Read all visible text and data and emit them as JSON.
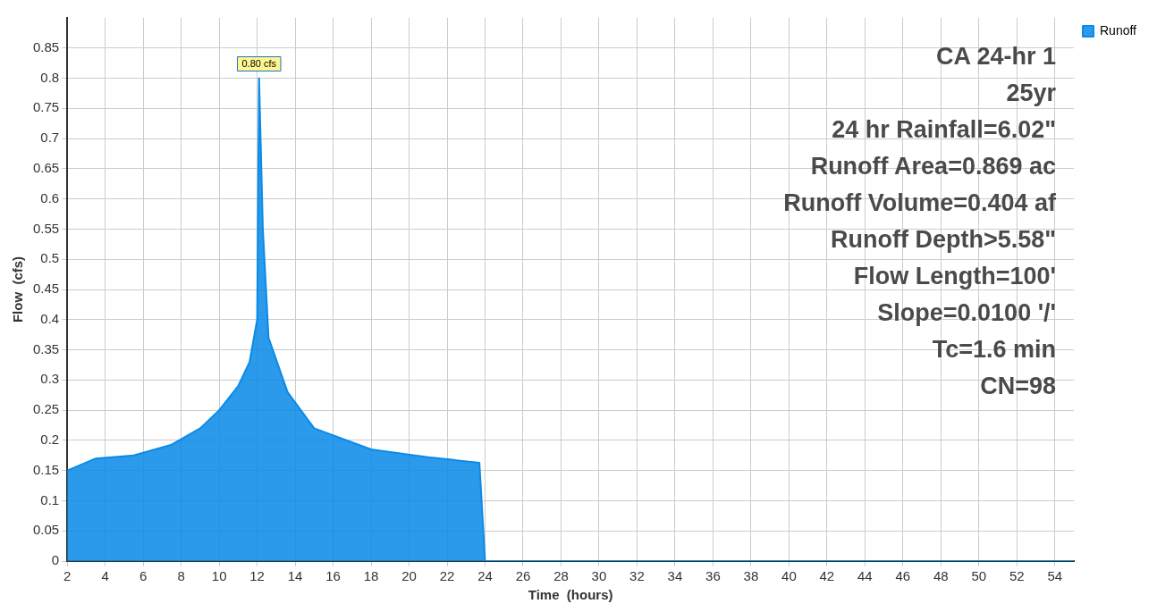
{
  "chart_data": {
    "type": "area",
    "xlabel": "Time  (hours)",
    "ylabel": "Flow  (cfs)",
    "x": [
      2,
      3.5,
      5.5,
      7.5,
      9,
      10,
      11,
      11.6,
      12,
      12.1,
      12.3,
      12.6,
      13.6,
      15,
      18,
      21,
      23.7,
      24,
      55
    ],
    "series": [
      {
        "name": "Runoff",
        "color": "#0a8be8",
        "values": [
          0.15,
          0.17,
          0.175,
          0.193,
          0.22,
          0.25,
          0.29,
          0.33,
          0.4,
          0.8,
          0.55,
          0.37,
          0.28,
          0.22,
          0.185,
          0.172,
          0.163,
          0,
          0
        ]
      }
    ],
    "xlim": [
      2,
      55
    ],
    "xticks": [
      2,
      4,
      6,
      8,
      10,
      12,
      14,
      16,
      18,
      20,
      22,
      24,
      26,
      28,
      30,
      32,
      34,
      36,
      38,
      40,
      42,
      44,
      46,
      48,
      50,
      52,
      54
    ],
    "ylim": [
      0,
      0.9
    ],
    "yticks": [
      0,
      0.05,
      0.1,
      0.15,
      0.2,
      0.25,
      0.3,
      0.35,
      0.4,
      0.45,
      0.5,
      0.55,
      0.6,
      0.65,
      0.7,
      0.75,
      0.8,
      0.85
    ],
    "grid": true,
    "legend": "top right",
    "annotations": [
      {
        "text": "0.80 cfs",
        "x": 12.1,
        "y": 0.8
      },
      "CA 24-hr 1",
      "25yr",
      "24 hr Rainfall=6.02\"",
      "Runoff Area=0.869 ac",
      "Runoff Volume=0.404 af",
      "Runoff Depth>5.58\"",
      "Flow Length=100'",
      "Slope=0.0100 '/'",
      "Tc=1.6 min",
      "CN=98"
    ]
  }
}
